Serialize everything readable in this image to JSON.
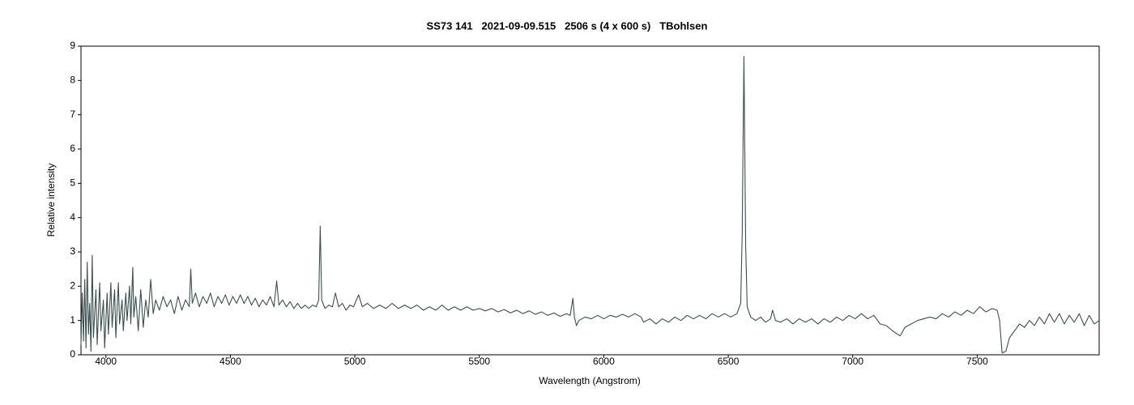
{
  "chart_data": {
    "type": "line",
    "title": "SS73 141   2021-09-09.515   2506 s (4 x 600 s)   TBohlsen",
    "xlabel": "Wavelength (Angstrom)",
    "ylabel": "Relative intensity",
    "color": "#3b4f4f",
    "xlim": [
      3900,
      7990
    ],
    "xticks": [
      4000,
      4500,
      5000,
      5500,
      6000,
      6500,
      7000,
      7500
    ],
    "ylim": [
      0,
      9
    ],
    "yticks": [
      0,
      1,
      2,
      3,
      4,
      5,
      6,
      7,
      8,
      9
    ],
    "grid": false,
    "x": [
      3900,
      3905,
      3910,
      3915,
      3920,
      3925,
      3930,
      3935,
      3940,
      3945,
      3950,
      3960,
      3965,
      3975,
      3980,
      3990,
      3995,
      4005,
      4010,
      4020,
      4025,
      4035,
      4040,
      4050,
      4055,
      4065,
      4070,
      4080,
      4085,
      4095,
      4100,
      4108,
      4112,
      4120,
      4130,
      4140,
      4150,
      4160,
      4170,
      4180,
      4190,
      4200,
      4215,
      4230,
      4245,
      4260,
      4275,
      4290,
      4305,
      4320,
      4335,
      4341,
      4347,
      4360,
      4375,
      4390,
      4405,
      4420,
      4435,
      4450,
      4465,
      4480,
      4495,
      4510,
      4525,
      4540,
      4555,
      4570,
      4585,
      4600,
      4615,
      4630,
      4645,
      4660,
      4675,
      4686,
      4695,
      4710,
      4725,
      4740,
      4755,
      4770,
      4785,
      4800,
      4815,
      4830,
      4845,
      4855,
      4861,
      4867,
      4880,
      4895,
      4910,
      4922,
      4935,
      4950,
      4965,
      4980,
      4995,
      5015,
      5030,
      5050,
      5075,
      5100,
      5125,
      5150,
      5175,
      5200,
      5225,
      5250,
      5275,
      5300,
      5325,
      5350,
      5375,
      5400,
      5425,
      5450,
      5475,
      5500,
      5525,
      5550,
      5575,
      5600,
      5625,
      5650,
      5675,
      5700,
      5725,
      5750,
      5775,
      5800,
      5825,
      5850,
      5865,
      5876,
      5882,
      5890,
      5900,
      5925,
      5950,
      5975,
      6000,
      6025,
      6050,
      6075,
      6100,
      6125,
      6150,
      6160,
      6185,
      6210,
      6235,
      6260,
      6285,
      6310,
      6335,
      6360,
      6385,
      6410,
      6435,
      6460,
      6485,
      6510,
      6535,
      6550,
      6556,
      6563,
      6570,
      6576,
      6590,
      6610,
      6630,
      6650,
      6670,
      6678,
      6690,
      6710,
      6735,
      6760,
      6785,
      6810,
      6835,
      6860,
      6885,
      6910,
      6935,
      6960,
      6985,
      7010,
      7035,
      7060,
      7085,
      7110,
      7135,
      7160,
      7190,
      7210,
      7235,
      7260,
      7285,
      7310,
      7335,
      7360,
      7385,
      7410,
      7435,
      7460,
      7485,
      7510,
      7535,
      7560,
      7580,
      7590,
      7600,
      7615,
      7630,
      7650,
      7670,
      7690,
      7710,
      7730,
      7750,
      7770,
      7790,
      7810,
      7830,
      7850,
      7870,
      7890,
      7910,
      7930,
      7950,
      7970,
      7990
    ],
    "values": [
      0.3,
      1.8,
      0.4,
      2.2,
      0.2,
      2.7,
      0.6,
      1.5,
      0.1,
      2.9,
      0.5,
      1.9,
      0.3,
      2.1,
      0.7,
      1.6,
      0.2,
      1.8,
      0.6,
      2.1,
      0.8,
      1.9,
      0.5,
      2.1,
      0.9,
      1.6,
      0.7,
      1.8,
      1.0,
      2.0,
      0.9,
      2.55,
      1.1,
      1.7,
      0.7,
      1.9,
      0.8,
      1.6,
      1.1,
      2.2,
      1.2,
      1.6,
      1.3,
      1.7,
      1.4,
      1.6,
      1.2,
      1.7,
      1.3,
      1.6,
      1.4,
      2.5,
      1.5,
      1.8,
      1.4,
      1.7,
      1.5,
      1.8,
      1.4,
      1.7,
      1.5,
      1.75,
      1.45,
      1.7,
      1.5,
      1.75,
      1.5,
      1.7,
      1.45,
      1.65,
      1.4,
      1.6,
      1.45,
      1.7,
      1.4,
      2.15,
      1.45,
      1.6,
      1.4,
      1.55,
      1.35,
      1.5,
      1.35,
      1.45,
      1.35,
      1.45,
      1.4,
      1.6,
      3.75,
      1.6,
      1.35,
      1.45,
      1.4,
      1.8,
      1.4,
      1.5,
      1.3,
      1.45,
      1.4,
      1.75,
      1.4,
      1.5,
      1.35,
      1.45,
      1.35,
      1.5,
      1.35,
      1.45,
      1.35,
      1.45,
      1.3,
      1.4,
      1.3,
      1.45,
      1.3,
      1.4,
      1.3,
      1.4,
      1.3,
      1.35,
      1.28,
      1.35,
      1.25,
      1.32,
      1.22,
      1.3,
      1.2,
      1.28,
      1.18,
      1.25,
      1.15,
      1.22,
      1.12,
      1.2,
      1.15,
      1.65,
      1.1,
      0.85,
      1.0,
      1.1,
      1.05,
      1.15,
      1.05,
      1.15,
      1.1,
      1.18,
      1.1,
      1.2,
      1.1,
      0.95,
      1.05,
      0.9,
      1.05,
      0.95,
      1.1,
      1.0,
      1.15,
      1.05,
      1.15,
      1.05,
      1.2,
      1.1,
      1.2,
      1.1,
      1.2,
      1.5,
      3.5,
      8.7,
      3.2,
      1.4,
      1.1,
      1.0,
      1.1,
      0.95,
      1.05,
      1.3,
      1.0,
      0.95,
      1.05,
      0.9,
      1.05,
      0.95,
      1.05,
      0.9,
      1.05,
      0.95,
      1.1,
      1.0,
      1.15,
      1.05,
      1.2,
      1.05,
      1.15,
      0.9,
      0.85,
      0.7,
      0.55,
      0.8,
      0.9,
      1.0,
      1.05,
      1.1,
      1.05,
      1.2,
      1.1,
      1.25,
      1.15,
      1.3,
      1.2,
      1.4,
      1.25,
      1.35,
      1.3,
      1.0,
      0.05,
      0.1,
      0.5,
      0.7,
      0.9,
      0.8,
      1.0,
      0.85,
      1.1,
      0.9,
      1.2,
      0.95,
      1.2,
      0.9,
      1.15,
      0.95,
      1.2,
      0.85,
      1.15,
      0.9,
      1.0
    ]
  }
}
